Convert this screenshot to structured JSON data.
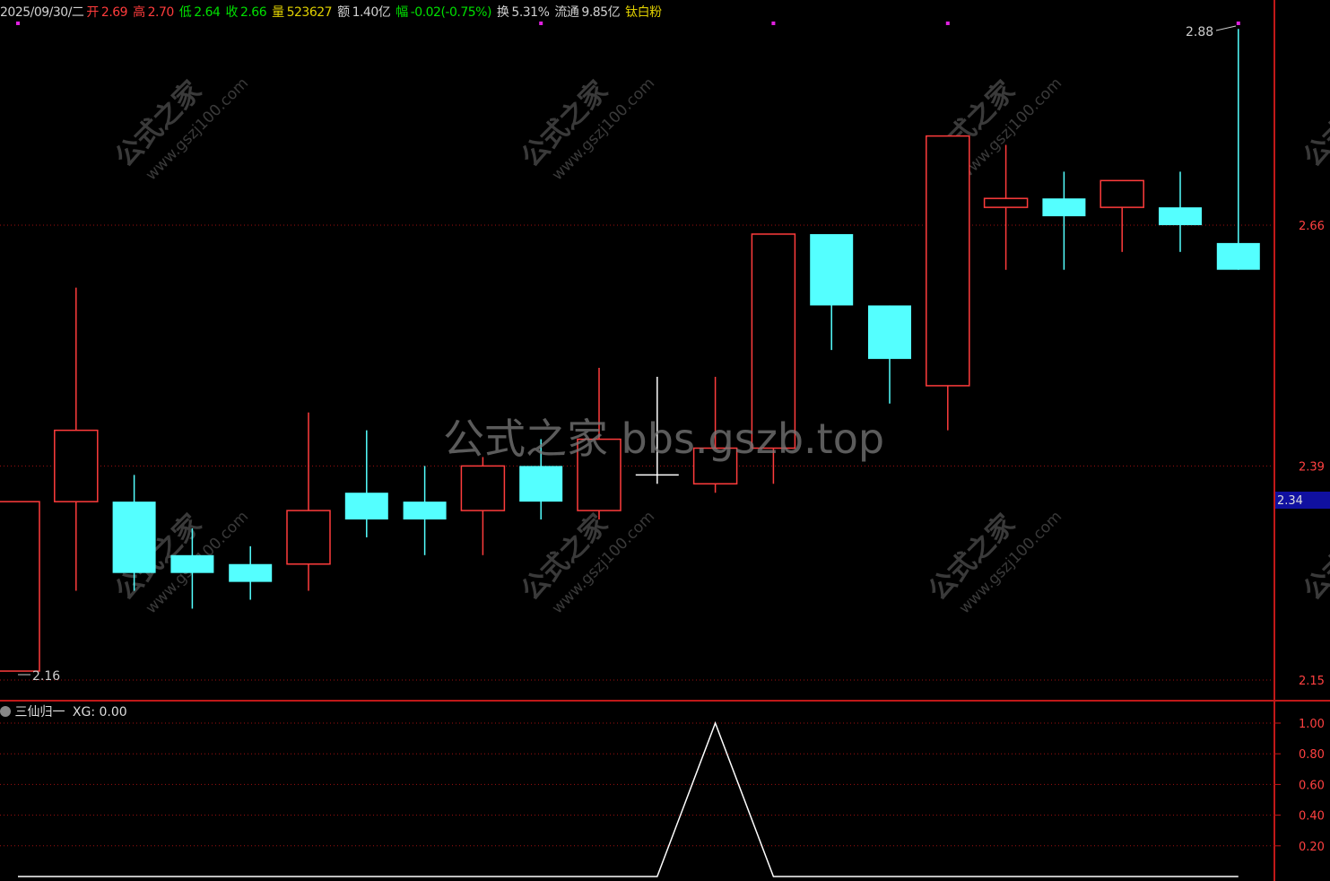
{
  "header": {
    "date": "2025/09/30/二",
    "open_label": "开",
    "open": "2.69",
    "high_label": "高",
    "high": "2.70",
    "low_label": "低",
    "low": "2.64",
    "close_label": "收",
    "close": "2.66",
    "volume_label": "量",
    "volume": "523627",
    "amount_label": "额",
    "amount": "1.40亿",
    "change_label": "幅",
    "change": "-0.02(-0.75%)",
    "turnover_label": "换",
    "turnover": "5.31%",
    "float_label": "流通",
    "float": "9.85亿",
    "concept": "钛白粉"
  },
  "indicator": {
    "name": "三仙归一",
    "value_text": "XG: 0.00"
  },
  "watermark": {
    "small_cn": "公式之家",
    "small_url": "www.gszj100.com",
    "center": "公式之家 bbs.gszb.top"
  },
  "colors": {
    "up": "#ff3c3c",
    "down": "#54ffff",
    "doji": "#ffffff",
    "grid": "#a01010",
    "current_price_box": "#1010a0",
    "marker": "#e020e0"
  },
  "chart_data": [
    {
      "type": "candlestick",
      "ylim": [
        2.15,
        2.88
      ],
      "yticks": [
        "2.66",
        "2.39",
        "2.15"
      ],
      "current_price": "2.34",
      "annotations": {
        "high": "2.88",
        "low": "2.16"
      },
      "candles": [
        {
          "o": 2.16,
          "h": 2.35,
          "l": 2.16,
          "c": 2.35
        },
        {
          "o": 2.35,
          "h": 2.59,
          "l": 2.25,
          "c": 2.43
        },
        {
          "o": 2.35,
          "h": 2.38,
          "l": 2.25,
          "c": 2.27
        },
        {
          "o": 2.29,
          "h": 2.32,
          "l": 2.23,
          "c": 2.27
        },
        {
          "o": 2.28,
          "h": 2.3,
          "l": 2.24,
          "c": 2.26
        },
        {
          "o": 2.28,
          "h": 2.45,
          "l": 2.25,
          "c": 2.34
        },
        {
          "o": 2.36,
          "h": 2.43,
          "l": 2.31,
          "c": 2.33
        },
        {
          "o": 2.35,
          "h": 2.39,
          "l": 2.29,
          "c": 2.33
        },
        {
          "o": 2.34,
          "h": 2.4,
          "l": 2.29,
          "c": 2.39
        },
        {
          "o": 2.39,
          "h": 2.42,
          "l": 2.33,
          "c": 2.35
        },
        {
          "o": 2.34,
          "h": 2.5,
          "l": 2.33,
          "c": 2.42
        },
        {
          "o": 2.38,
          "h": 2.49,
          "l": 2.37,
          "c": 2.38
        },
        {
          "o": 2.37,
          "h": 2.49,
          "l": 2.36,
          "c": 2.41
        },
        {
          "o": 2.41,
          "h": 2.65,
          "l": 2.37,
          "c": 2.65
        },
        {
          "o": 2.65,
          "h": 2.65,
          "l": 2.52,
          "c": 2.57
        },
        {
          "o": 2.57,
          "h": 2.57,
          "l": 2.46,
          "c": 2.51
        },
        {
          "o": 2.48,
          "h": 2.76,
          "l": 2.43,
          "c": 2.76
        },
        {
          "o": 2.68,
          "h": 2.75,
          "l": 2.61,
          "c": 2.69
        },
        {
          "o": 2.69,
          "h": 2.72,
          "l": 2.61,
          "c": 2.67
        },
        {
          "o": 2.68,
          "h": 2.71,
          "l": 2.63,
          "c": 2.71
        },
        {
          "o": 2.68,
          "h": 2.72,
          "l": 2.63,
          "c": 2.66
        },
        {
          "o": 2.64,
          "h": 2.88,
          "l": 2.61,
          "c": 2.61
        }
      ],
      "markers_at": [
        0,
        9,
        13,
        16,
        21
      ]
    },
    {
      "type": "line",
      "name": "XG",
      "ylim": [
        0,
        1
      ],
      "yticks": [
        "1.00",
        "0.80",
        "0.60",
        "0.40",
        "0.20"
      ],
      "values": [
        0,
        0,
        0,
        0,
        0,
        0,
        0,
        0,
        0,
        0,
        0,
        0,
        1,
        0,
        0,
        0,
        0,
        0,
        0,
        0,
        0,
        0
      ]
    }
  ]
}
